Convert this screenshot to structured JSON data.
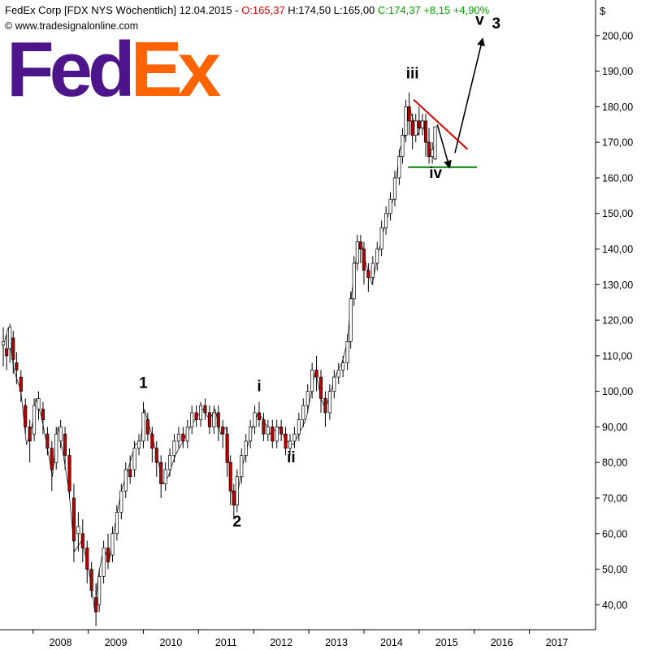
{
  "header": {
    "title": "FedEx Corp [FDX NYS  Wöchentlich] 12.04.2015 - ",
    "open": "O:165,37",
    "hlc": " H:174,50 L:165,00 ",
    "close": "C:174,37 +8,15 +4,90%",
    "website": "www.tradesignalonline.com",
    "currency": "$"
  },
  "logo": {
    "part1": "Fed",
    "part2": "Ex"
  },
  "colors": {
    "up_candle": "#ffffff",
    "down_candle": "#c00000",
    "wick": "#000000",
    "resistance_line": "#e00000",
    "support_line": "#008000",
    "arrow": "#000000",
    "brand_purple": "#4d148c",
    "brand_orange": "#ff6200"
  },
  "chart_data": {
    "type": "candlestick",
    "title": "FedEx Corp [FDX NYS  Wöchentlich] 12.04.2015",
    "y_ticks": [
      "40,00",
      "50,00",
      "60,00",
      "70,00",
      "80,00",
      "90,00",
      "100,00",
      "110,00",
      "120,00",
      "130,00",
      "140,00",
      "150,00",
      "160,00",
      "170,00",
      "180,00",
      "190,00",
      "200,00"
    ],
    "ylim": [
      33,
      210
    ],
    "x_ticks": [
      "2008",
      "2009",
      "2010",
      "2011",
      "2012",
      "2013",
      "2014",
      "2015",
      "2016",
      "2017"
    ],
    "xlim": [
      2007.4,
      2018.2
    ],
    "price_path": [
      [
        2007.45,
        112
      ],
      [
        2007.55,
        118
      ],
      [
        2007.65,
        106
      ],
      [
        2007.78,
        100
      ],
      [
        2007.88,
        85
      ],
      [
        2007.98,
        90
      ],
      [
        2008.05,
        98
      ],
      [
        2008.15,
        93
      ],
      [
        2008.25,
        85
      ],
      [
        2008.35,
        76
      ],
      [
        2008.45,
        90
      ],
      [
        2008.55,
        82
      ],
      [
        2008.65,
        72
      ],
      [
        2008.75,
        55
      ],
      [
        2008.88,
        58
      ],
      [
        2008.98,
        52
      ],
      [
        2009.05,
        46
      ],
      [
        2009.12,
        38
      ],
      [
        2009.18,
        48
      ],
      [
        2009.28,
        56
      ],
      [
        2009.38,
        52
      ],
      [
        2009.48,
        62
      ],
      [
        2009.6,
        72
      ],
      [
        2009.72,
        78
      ],
      [
        2009.85,
        85
      ],
      [
        2009.95,
        86
      ],
      [
        2010.02,
        95
      ],
      [
        2010.15,
        88
      ],
      [
        2010.25,
        82
      ],
      [
        2010.35,
        74
      ],
      [
        2010.45,
        76
      ],
      [
        2010.58,
        82
      ],
      [
        2010.72,
        86
      ],
      [
        2010.85,
        90
      ],
      [
        2010.98,
        93
      ],
      [
        2011.08,
        95
      ],
      [
        2011.2,
        92
      ],
      [
        2011.3,
        95
      ],
      [
        2011.4,
        88
      ],
      [
        2011.5,
        90
      ],
      [
        2011.6,
        72
      ],
      [
        2011.68,
        68
      ],
      [
        2011.78,
        78
      ],
      [
        2011.88,
        84
      ],
      [
        2011.98,
        90
      ],
      [
        2012.08,
        94
      ],
      [
        2012.18,
        92
      ],
      [
        2012.3,
        88
      ],
      [
        2012.45,
        90
      ],
      [
        2012.6,
        86
      ],
      [
        2012.72,
        85
      ],
      [
        2012.82,
        88
      ],
      [
        2012.95,
        92
      ],
      [
        2013.05,
        100
      ],
      [
        2013.12,
        106
      ],
      [
        2013.22,
        98
      ],
      [
        2013.3,
        95
      ],
      [
        2013.4,
        100
      ],
      [
        2013.5,
        105
      ],
      [
        2013.6,
        108
      ],
      [
        2013.7,
        114
      ],
      [
        2013.78,
        128
      ],
      [
        2013.88,
        140
      ],
      [
        2013.95,
        142
      ],
      [
        2014.05,
        135
      ],
      [
        2014.15,
        130
      ],
      [
        2014.25,
        138
      ],
      [
        2014.35,
        145
      ],
      [
        2014.45,
        150
      ],
      [
        2014.55,
        155
      ],
      [
        2014.65,
        168
      ],
      [
        2014.75,
        172
      ],
      [
        2014.82,
        180
      ],
      [
        2014.9,
        176
      ],
      [
        2014.98,
        172
      ],
      [
        2015.05,
        176
      ],
      [
        2015.12,
        172
      ],
      [
        2015.18,
        168
      ],
      [
        2015.25,
        166
      ],
      [
        2015.29,
        174
      ]
    ],
    "candles": [
      [
        2007.46,
        113,
        114,
        107,
        118,
        1
      ],
      [
        2007.52,
        110,
        112,
        106,
        116,
        0
      ],
      [
        2007.58,
        112,
        118,
        108,
        119,
        1
      ],
      [
        2007.64,
        115,
        109,
        105,
        117,
        0
      ],
      [
        2007.7,
        108,
        106,
        102,
        111,
        0
      ],
      [
        2007.78,
        104,
        100,
        97,
        106,
        0
      ],
      [
        2007.86,
        96,
        90,
        88,
        98,
        0
      ],
      [
        2007.94,
        90,
        86,
        80,
        92,
        0
      ],
      [
        2008.02,
        88,
        96,
        86,
        98,
        1
      ],
      [
        2008.1,
        95,
        98,
        92,
        100,
        1
      ],
      [
        2008.18,
        95,
        92,
        88,
        97,
        0
      ],
      [
        2008.26,
        88,
        84,
        82,
        90,
        0
      ],
      [
        2008.34,
        84,
        78,
        72,
        86,
        0
      ],
      [
        2008.42,
        80,
        88,
        78,
        90,
        1
      ],
      [
        2008.5,
        86,
        90,
        84,
        92,
        1
      ],
      [
        2008.58,
        88,
        82,
        78,
        90,
        0
      ],
      [
        2008.66,
        82,
        72,
        70,
        84,
        0
      ],
      [
        2008.74,
        70,
        58,
        52,
        74,
        0
      ],
      [
        2008.82,
        60,
        62,
        55,
        66,
        1
      ],
      [
        2008.9,
        60,
        56,
        52,
        64,
        0
      ],
      [
        2008.98,
        56,
        50,
        46,
        58,
        0
      ],
      [
        2009.06,
        50,
        44,
        42,
        52,
        0
      ],
      [
        2009.14,
        42,
        38,
        34,
        46,
        0
      ],
      [
        2009.2,
        40,
        48,
        38,
        50,
        1
      ],
      [
        2009.28,
        48,
        56,
        46,
        58,
        1
      ],
      [
        2009.36,
        56,
        52,
        50,
        60,
        0
      ],
      [
        2009.44,
        54,
        60,
        52,
        62,
        1
      ],
      [
        2009.52,
        60,
        66,
        58,
        68,
        1
      ],
      [
        2009.6,
        66,
        72,
        64,
        74,
        1
      ],
      [
        2009.68,
        72,
        78,
        70,
        80,
        1
      ],
      [
        2009.76,
        78,
        76,
        74,
        82,
        0
      ],
      [
        2009.84,
        78,
        84,
        76,
        86,
        1
      ],
      [
        2009.92,
        84,
        86,
        82,
        88,
        1
      ],
      [
        2010.0,
        86,
        94,
        84,
        97,
        1
      ],
      [
        2010.08,
        92,
        88,
        86,
        94,
        0
      ],
      [
        2010.16,
        88,
        84,
        80,
        90,
        0
      ],
      [
        2010.24,
        84,
        80,
        76,
        86,
        0
      ],
      [
        2010.32,
        80,
        74,
        70,
        82,
        0
      ],
      [
        2010.4,
        74,
        78,
        72,
        80,
        1
      ],
      [
        2010.48,
        78,
        82,
        76,
        84,
        1
      ],
      [
        2010.56,
        82,
        86,
        80,
        88,
        1
      ],
      [
        2010.64,
        86,
        88,
        84,
        90,
        1
      ],
      [
        2010.72,
        88,
        86,
        84,
        90,
        0
      ],
      [
        2010.8,
        86,
        90,
        84,
        92,
        1
      ],
      [
        2010.88,
        90,
        94,
        88,
        96,
        1
      ],
      [
        2010.96,
        94,
        92,
        90,
        96,
        0
      ],
      [
        2011.04,
        92,
        96,
        90,
        97,
        1
      ],
      [
        2011.12,
        96,
        94,
        92,
        98,
        0
      ],
      [
        2011.2,
        94,
        90,
        88,
        96,
        0
      ],
      [
        2011.28,
        90,
        94,
        88,
        96,
        1
      ],
      [
        2011.36,
        94,
        90,
        86,
        96,
        0
      ],
      [
        2011.44,
        90,
        88,
        84,
        92,
        0
      ],
      [
        2011.52,
        88,
        80,
        76,
        90,
        0
      ],
      [
        2011.58,
        80,
        72,
        68,
        82,
        0
      ],
      [
        2011.64,
        72,
        68,
        64,
        74,
        0
      ],
      [
        2011.7,
        68,
        76,
        66,
        78,
        1
      ],
      [
        2011.78,
        76,
        82,
        74,
        84,
        1
      ],
      [
        2011.86,
        82,
        86,
        80,
        88,
        1
      ],
      [
        2011.94,
        86,
        90,
        84,
        92,
        1
      ],
      [
        2012.02,
        90,
        94,
        88,
        96,
        1
      ],
      [
        2012.1,
        94,
        92,
        90,
        97,
        0
      ],
      [
        2012.18,
        92,
        88,
        86,
        94,
        0
      ],
      [
        2012.26,
        88,
        90,
        86,
        92,
        1
      ],
      [
        2012.34,
        90,
        86,
        84,
        92,
        0
      ],
      [
        2012.42,
        86,
        90,
        84,
        92,
        1
      ],
      [
        2012.5,
        90,
        88,
        86,
        92,
        0
      ],
      [
        2012.58,
        88,
        84,
        82,
        90,
        0
      ],
      [
        2012.66,
        84,
        86,
        82,
        88,
        1
      ],
      [
        2012.74,
        86,
        88,
        84,
        90,
        1
      ],
      [
        2012.82,
        88,
        92,
        86,
        94,
        1
      ],
      [
        2012.9,
        92,
        96,
        90,
        98,
        1
      ],
      [
        2012.98,
        96,
        100,
        94,
        102,
        1
      ],
      [
        2013.06,
        100,
        106,
        98,
        108,
        1
      ],
      [
        2013.14,
        106,
        104,
        100,
        110,
        0
      ],
      [
        2013.22,
        104,
        98,
        94,
        106,
        0
      ],
      [
        2013.3,
        98,
        94,
        90,
        100,
        0
      ],
      [
        2013.38,
        94,
        100,
        92,
        102,
        1
      ],
      [
        2013.46,
        100,
        104,
        98,
        106,
        1
      ],
      [
        2013.54,
        104,
        106,
        102,
        108,
        1
      ],
      [
        2013.62,
        106,
        108,
        104,
        110,
        1
      ],
      [
        2013.7,
        108,
        114,
        106,
        116,
        1
      ],
      [
        2013.76,
        114,
        126,
        112,
        128,
        1
      ],
      [
        2013.82,
        126,
        136,
        124,
        138,
        1
      ],
      [
        2013.88,
        136,
        142,
        134,
        144,
        1
      ],
      [
        2013.94,
        142,
        140,
        136,
        144,
        0
      ],
      [
        2014.0,
        140,
        134,
        130,
        142,
        0
      ],
      [
        2014.08,
        134,
        132,
        128,
        136,
        0
      ],
      [
        2014.16,
        132,
        136,
        130,
        138,
        1
      ],
      [
        2014.24,
        136,
        140,
        134,
        142,
        1
      ],
      [
        2014.32,
        140,
        146,
        138,
        148,
        1
      ],
      [
        2014.4,
        146,
        150,
        144,
        152,
        1
      ],
      [
        2014.48,
        150,
        154,
        148,
        156,
        1
      ],
      [
        2014.56,
        154,
        160,
        152,
        162,
        1
      ],
      [
        2014.64,
        160,
        166,
        158,
        168,
        1
      ],
      [
        2014.7,
        166,
        172,
        164,
        174,
        1
      ],
      [
        2014.76,
        172,
        180,
        170,
        182,
        1
      ],
      [
        2014.82,
        180,
        176,
        172,
        184,
        0
      ],
      [
        2014.88,
        176,
        172,
        168,
        178,
        0
      ],
      [
        2014.94,
        172,
        176,
        170,
        178,
        1
      ],
      [
        2015.0,
        176,
        174,
        172,
        180,
        0
      ],
      [
        2015.06,
        174,
        176,
        172,
        178,
        1
      ],
      [
        2015.12,
        176,
        170,
        166,
        178,
        0
      ],
      [
        2015.18,
        170,
        166,
        164,
        174,
        0
      ],
      [
        2015.24,
        166,
        168,
        164,
        170,
        1
      ],
      [
        2015.29,
        165.37,
        174.37,
        165,
        174.5,
        1
      ]
    ],
    "wave_labels": [
      {
        "text": "1",
        "x": 2010.0,
        "y": 101
      },
      {
        "text": "2",
        "x": 2011.7,
        "y": 62
      },
      {
        "text": "i",
        "x": 2012.1,
        "y": 100
      },
      {
        "text": "ii",
        "x": 2012.68,
        "y": 80
      },
      {
        "text": "iii",
        "x": 2014.88,
        "y": 188
      },
      {
        "text": "iv",
        "x": 2015.3,
        "y": 160
      },
      {
        "text": "v",
        "x": 2016.1,
        "y": 203
      },
      {
        "text": "3",
        "x": 2016.4,
        "y": 202
      }
    ],
    "resistance_line": [
      [
        2014.9,
        182
      ],
      [
        2015.88,
        168
      ]
    ],
    "support_line": [
      [
        2014.8,
        163
      ],
      [
        2016.05,
        163
      ]
    ],
    "arrows": [
      [
        [
          2015.33,
          175
        ],
        [
          2015.55,
          163
        ]
      ],
      [
        [
          2015.65,
          167
        ],
        [
          2016.15,
          199
        ]
      ]
    ]
  }
}
